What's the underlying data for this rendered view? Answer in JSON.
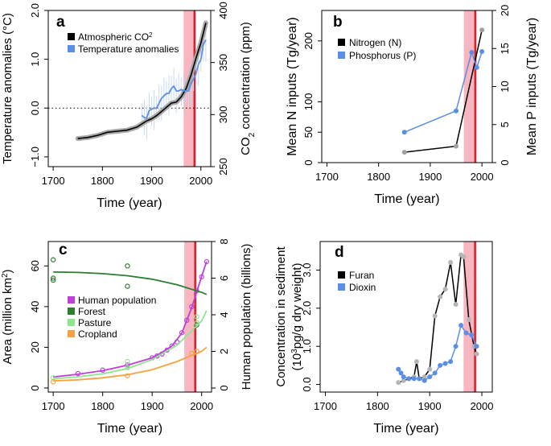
{
  "figure": {
    "background": "#ffffff",
    "highlight_color": "#f8b6c0",
    "line_red": "#d4232a"
  },
  "chart_data": [
    {
      "panel": "a",
      "type": "line",
      "xlabel": "Time (year)",
      "ylabel_left": "Temperature anomalies (°C)",
      "ylabel_right_main": "CO",
      "ylabel_right_sub": "2",
      "ylabel_right_end": " concentration (ppm)",
      "xlim": [
        1690,
        2020
      ],
      "ylim_left": [
        -1.2,
        2.0
      ],
      "ylim_right": [
        250,
        400
      ],
      "xticks": [
        1700,
        1800,
        1900,
        2000
      ],
      "yticks_left": [
        -1.0,
        0.0,
        1.0,
        2.0
      ],
      "ytick_labels_left": [
        "−1.0",
        "0.0",
        "1.0",
        "2.0"
      ],
      "yticks_right": [
        250,
        300,
        350,
        400
      ],
      "ytick_labels_right": [
        "250",
        "300",
        "350",
        "400"
      ],
      "highlight": [
        1965,
        1990
      ],
      "vline": 1987,
      "hline_left": 0,
      "legend": [
        {
          "label_main": "Atmospheric CO",
          "label_sup": "2",
          "color": "#000000"
        },
        {
          "label_main": "Temperature anomalies",
          "label_sup": "",
          "color": "#5b8ee6"
        }
      ],
      "co2": {
        "axis": "right",
        "color": "#000000",
        "x": [
          1750,
          1770,
          1790,
          1810,
          1830,
          1850,
          1870,
          1880,
          1890,
          1900,
          1910,
          1920,
          1930,
          1940,
          1950,
          1960,
          1970,
          1980,
          1990,
          2000,
          2010
        ],
        "y": [
          277,
          278,
          280,
          283,
          284,
          285,
          288,
          291,
          294,
          296,
          299,
          303,
          307,
          311,
          312,
          317,
          325,
          338,
          354,
          369,
          388
        ]
      },
      "temperature": {
        "axis": "left",
        "color": "#5b8ee6",
        "x": [
          1880,
          1885,
          1890,
          1895,
          1900,
          1905,
          1910,
          1915,
          1920,
          1925,
          1930,
          1935,
          1940,
          1945,
          1950,
          1955,
          1960,
          1965,
          1970,
          1975,
          1980,
          1985,
          1990,
          1995,
          2000,
          2005,
          2010
        ],
        "y": [
          -0.15,
          -0.2,
          -0.2,
          -0.05,
          -0.02,
          0.0,
          0.0,
          0.1,
          0.2,
          0.25,
          0.3,
          0.3,
          0.4,
          0.45,
          0.35,
          0.35,
          0.38,
          0.35,
          0.35,
          0.35,
          0.5,
          0.6,
          0.7,
          0.9,
          1.0,
          1.3,
          1.4
        ]
      }
    },
    {
      "panel": "b",
      "type": "line",
      "xlabel": "Time (year)",
      "ylabel_left": "Mean N inputs (Tg/year)",
      "ylabel_right": "Mean P inputs (Tg/year)",
      "xlim": [
        1690,
        2020
      ],
      "ylim_left": [
        0,
        250
      ],
      "ylim_right": [
        0,
        20
      ],
      "xticks": [
        1700,
        1800,
        1900,
        2000
      ],
      "yticks_left": [
        0,
        50,
        100,
        200
      ],
      "ytick_labels_left": [
        "0",
        "50",
        "100",
        "200"
      ],
      "yticks_right": [
        0,
        5,
        10,
        15,
        20
      ],
      "ytick_labels_right": [
        "0",
        "5",
        "10",
        "15",
        "20"
      ],
      "highlight": [
        1965,
        1990
      ],
      "vline": 1987,
      "legend": [
        {
          "label": "Nitrogen (N)",
          "color": "#000000"
        },
        {
          "label": "Phosphorus (P)",
          "color": "#5b8ee6"
        }
      ],
      "series": [
        {
          "name": "Nitrogen (N)",
          "axis": "left",
          "color": "#000000",
          "x": [
            1850,
            1950,
            2000
          ],
          "y": [
            17,
            27,
            218
          ]
        },
        {
          "name": "Phosphorus (P)",
          "axis": "right",
          "color": "#5b8ee6",
          "x": [
            1850,
            1950,
            1980,
            1990,
            2000
          ],
          "y": [
            4.0,
            6.8,
            14.5,
            12.5,
            14.6
          ]
        }
      ]
    },
    {
      "panel": "c",
      "type": "scatter",
      "xlabel": "Time (year)",
      "ylabel_left": "Area (million  km",
      "ylabel_left_sup": "2",
      "ylabel_left_end": ")",
      "ylabel_right": "Human population (billions)",
      "xlim": [
        1690,
        2020
      ],
      "ylim_left": [
        -2,
        72
      ],
      "ylim_right": [
        -0.22,
        8.0
      ],
      "xticks": [
        1700,
        1800,
        1900,
        2000
      ],
      "yticks_left": [
        0,
        20,
        40,
        60
      ],
      "ytick_labels_left": [
        "0",
        "20",
        "40",
        "60"
      ],
      "yticks_right": [
        0,
        2,
        4,
        6,
        8
      ],
      "ytick_labels_right": [
        "0",
        "2",
        "4",
        "6",
        "8"
      ],
      "highlight": [
        1965,
        1990
      ],
      "vline": 1987,
      "legend": [
        {
          "label": "Human population",
          "color": "#bf40d8"
        },
        {
          "label": "Forest",
          "color": "#2e7d32"
        },
        {
          "label": "Pasture",
          "color": "#8ee68e"
        },
        {
          "label": "Cropland",
          "color": "#f5a340"
        }
      ],
      "series": [
        {
          "name": "Human population",
          "axis": "right",
          "color": "#bf40d8",
          "curve_x": [
            1700,
            1750,
            1800,
            1850,
            1900,
            1920,
            1940,
            1960,
            1980,
            2000,
            2010
          ],
          "curve_y": [
            0.6,
            0.75,
            0.95,
            1.25,
            1.65,
            1.95,
            2.3,
            3.0,
            4.4,
            6.1,
            6.9
          ],
          "points_x": [
            1750,
            1800,
            1850,
            1900,
            1910,
            1920,
            1930,
            1940,
            1950,
            1960,
            1970,
            1980,
            1990,
            2000,
            2010
          ],
          "points_y": [
            0.79,
            0.98,
            1.26,
            1.65,
            1.75,
            1.86,
            2.07,
            2.3,
            2.52,
            3.02,
            3.7,
            4.44,
            5.3,
            6.07,
            6.9
          ]
        },
        {
          "name": "Forest",
          "axis": "left",
          "color": "#2e7d32",
          "curve_x": [
            1700,
            1750,
            1800,
            1850,
            1900,
            1950,
            2000,
            2010
          ],
          "curve_y": [
            57,
            56.8,
            56.2,
            55.2,
            53.5,
            50.8,
            47,
            46
          ],
          "points_x": [
            1700,
            1700,
            1700,
            1850,
            1850,
            1990
          ],
          "points_y": [
            63,
            54,
            53,
            60,
            50,
            31
          ]
        },
        {
          "name": "Pasture",
          "axis": "left",
          "color": "#8ee68e",
          "curve_x": [
            1700,
            1750,
            1800,
            1850,
            1900,
            1950,
            2000,
            2010
          ],
          "curve_y": [
            4.5,
            5.5,
            7,
            9.5,
            14,
            21,
            33,
            38
          ],
          "points_x": [
            1700,
            1850,
            1850,
            1990,
            1990
          ],
          "points_y": [
            5,
            13,
            10,
            32,
            35
          ]
        },
        {
          "name": "Cropland",
          "axis": "left",
          "color": "#f5a340",
          "curve_x": [
            1700,
            1750,
            1800,
            1850,
            1900,
            1950,
            2000,
            2010
          ],
          "curve_y": [
            3.5,
            4,
            5,
            6.5,
            9,
            13,
            18,
            20
          ],
          "points_x": [
            1700,
            1850,
            1980,
            1990
          ],
          "points_y": [
            3,
            6,
            17,
            18
          ]
        }
      ]
    },
    {
      "panel": "d",
      "type": "line",
      "xlabel": "Time (year)",
      "ylabel_line1": "Concentration in sediment",
      "ylabel_line2_main": "(10",
      "ylabel_line2_sup": "3",
      "ylabel_line2_end": "pg/g dry weight)",
      "xlim": [
        1690,
        2020
      ],
      "ylim": [
        -0.2,
        3.75
      ],
      "xticks": [
        1700,
        1800,
        1900,
        2000
      ],
      "yticks": [
        0.0,
        1.0,
        2.0,
        3.0
      ],
      "ytick_labels": [
        "0.0",
        "1.0",
        "2.0",
        "3.0"
      ],
      "highlight": [
        1965,
        1990
      ],
      "vline": 1987,
      "legend": [
        {
          "label": "Furan",
          "color": "#000000"
        },
        {
          "label": "Dioxin",
          "color": "#5b8ee6"
        }
      ],
      "series": [
        {
          "name": "Furan",
          "color": "#000000",
          "x": [
            1840,
            1850,
            1860,
            1870,
            1875,
            1880,
            1890,
            1900,
            1910,
            1920,
            1930,
            1940,
            1950,
            1960,
            1965,
            1975,
            1985,
            1990
          ],
          "y": [
            0.05,
            0.1,
            0.15,
            0.2,
            0.6,
            0.15,
            0.2,
            0.4,
            1.8,
            2.3,
            2.5,
            3.2,
            2.1,
            3.4,
            3.35,
            1.7,
            1.0,
            0.8
          ]
        },
        {
          "name": "Dioxin",
          "color": "#5b8ee6",
          "x": [
            1840,
            1845,
            1850,
            1860,
            1870,
            1880,
            1890,
            1900,
            1910,
            1920,
            1930,
            1940,
            1950,
            1960,
            1970,
            1980,
            1990
          ],
          "y": [
            0.4,
            0.3,
            0.2,
            0.15,
            0.15,
            0.15,
            0.1,
            0.2,
            0.3,
            0.5,
            0.55,
            0.6,
            1.0,
            1.55,
            1.35,
            1.3,
            1.0
          ]
        }
      ]
    }
  ]
}
